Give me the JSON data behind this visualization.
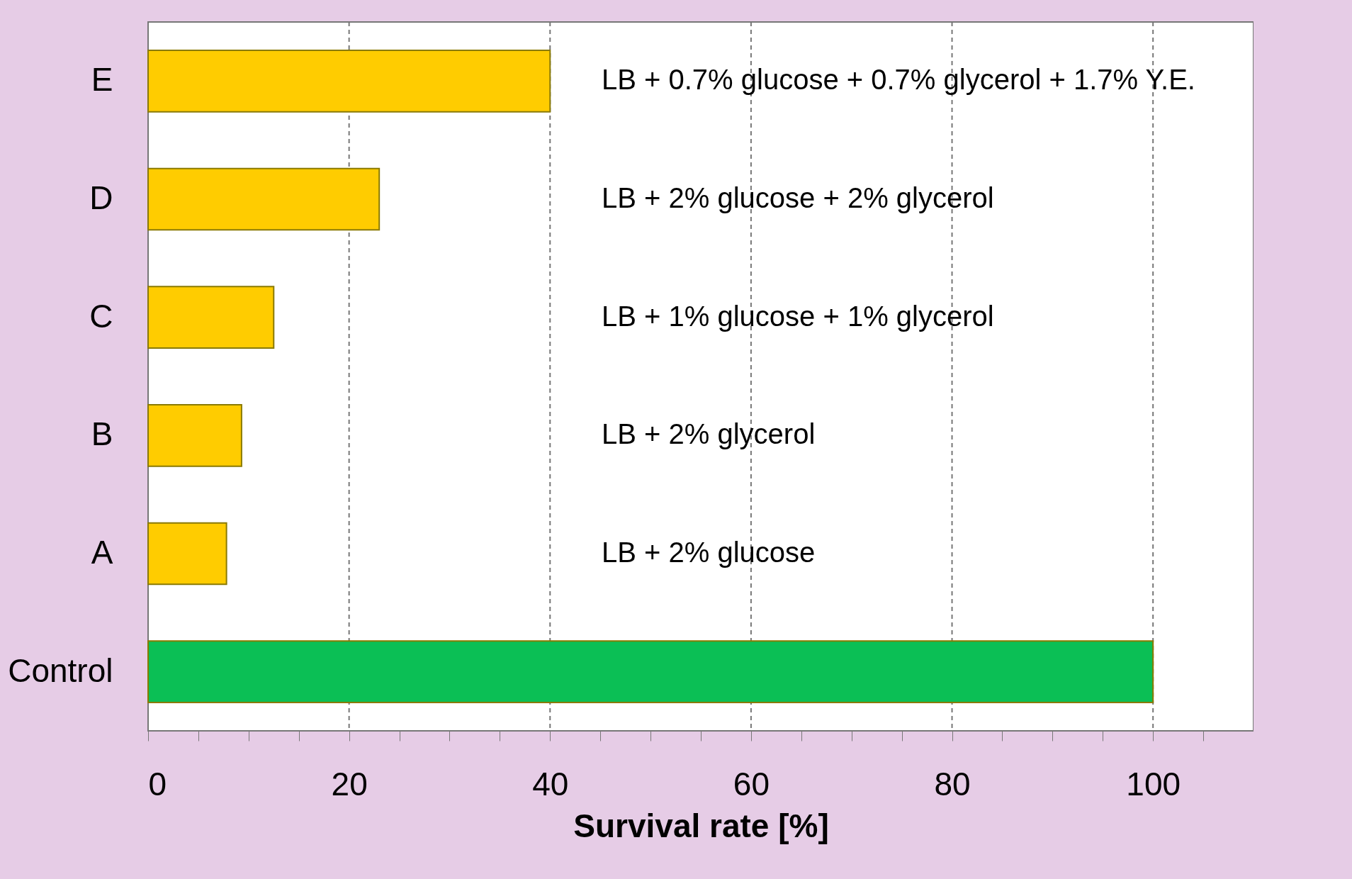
{
  "chart_data": {
    "type": "bar",
    "orientation": "horizontal",
    "xlabel": "Survival rate  [%]",
    "categories": [
      "E",
      "D",
      "C",
      "B",
      "A",
      "Control"
    ],
    "values": [
      40,
      23,
      12.5,
      9.3,
      7.8,
      100
    ],
    "colors": [
      "#ffcc00",
      "#ffcc00",
      "#ffcc00",
      "#ffcc00",
      "#ffcc00",
      "#0bbf55"
    ],
    "xlim": [
      0,
      110
    ],
    "xticks": [
      0,
      {
        "value": 5,
        "label": null
      },
      {
        "value": 10,
        "label": null
      },
      {
        "value": 15,
        "label": null
      },
      20,
      {
        "value": 25,
        "label": null
      },
      {
        "value": 30,
        "label": null
      },
      {
        "value": 35,
        "label": null
      },
      40,
      {
        "value": 45,
        "label": null
      },
      {
        "value": 50,
        "label": null
      },
      {
        "value": 55,
        "label": null
      },
      60,
      {
        "value": 65,
        "label": null
      },
      {
        "value": 70,
        "label": null
      },
      {
        "value": 75,
        "label": null
      },
      80,
      {
        "value": 85,
        "label": null
      },
      {
        "value": 90,
        "label": null
      },
      {
        "value": 95,
        "label": null
      },
      100,
      {
        "value": 105,
        "label": null
      }
    ],
    "grid": "x",
    "annotations": [
      "LB + 0.7% glucose + 0.7% glycerol + 1.7% Y.E.",
      "LB + 2% glucose + 2% glycerol",
      "LB + 1% glucose + 1% glycerol",
      "LB + 2% glycerol",
      "LB + 2% glucose"
    ]
  }
}
